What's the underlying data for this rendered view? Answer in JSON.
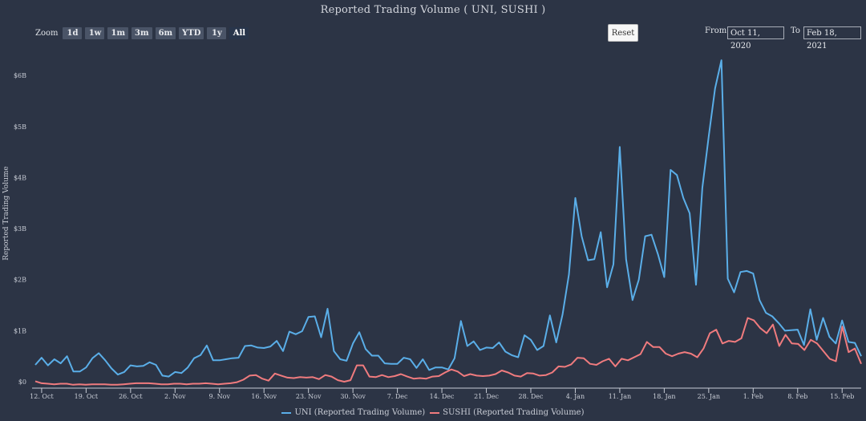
{
  "title": "Reported Trading Volume ( UNI, SUSHI )",
  "zoom": {
    "label": "Zoom",
    "buttons": [
      "1d",
      "1w",
      "1m",
      "3m",
      "6m",
      "YTD",
      "1y",
      "All"
    ],
    "active": "All"
  },
  "reset_label": "Reset",
  "range": {
    "from_label": "From",
    "from_value": "Oct 11, 2020",
    "to_label": "To",
    "to_value": "Feb 18, 2021"
  },
  "colors": {
    "uni": "#5aaee8",
    "sushi": "#f07b7e",
    "background": "#2c3445"
  },
  "chart_data": {
    "type": "line",
    "title": "Reported Trading Volume ( UNI, SUSHI )",
    "xlabel": "",
    "ylabel": "Reported Trading Volume",
    "x_start": "Oct 11, 2020",
    "x_end": "Feb 18, 2021",
    "x_unit": "days since Oct 11, 2020",
    "xlim": [
      0,
      130
    ],
    "ylim": [
      0,
      6.6
    ],
    "y_ticks": [
      {
        "value": 0,
        "label": "$0"
      },
      {
        "value": 1,
        "label": "$1B"
      },
      {
        "value": 2,
        "label": "$2B"
      },
      {
        "value": 3,
        "label": "$3B"
      },
      {
        "value": 4,
        "label": "$4B"
      },
      {
        "value": 5,
        "label": "$5B"
      },
      {
        "value": 6,
        "label": "$6B"
      }
    ],
    "x_ticks": [
      {
        "day": 1,
        "label": "12. Oct"
      },
      {
        "day": 8,
        "label": "19. Oct"
      },
      {
        "day": 15,
        "label": "26. Oct"
      },
      {
        "day": 22,
        "label": "2. Nov"
      },
      {
        "day": 29,
        "label": "9. Nov"
      },
      {
        "day": 36,
        "label": "16. Nov"
      },
      {
        "day": 43,
        "label": "23. Nov"
      },
      {
        "day": 50,
        "label": "30. Nov"
      },
      {
        "day": 57,
        "label": "7. Dec"
      },
      {
        "day": 64,
        "label": "14. Dec"
      },
      {
        "day": 71,
        "label": "21. Dec"
      },
      {
        "day": 78,
        "label": "28. Dec"
      },
      {
        "day": 85,
        "label": "4. Jan"
      },
      {
        "day": 92,
        "label": "11. Jan"
      },
      {
        "day": 99,
        "label": "18. Jan"
      },
      {
        "day": 106,
        "label": "25. Jan"
      },
      {
        "day": 113,
        "label": "1. Feb"
      },
      {
        "day": 120,
        "label": "8. Feb"
      },
      {
        "day": 127,
        "label": "15. Feb"
      }
    ],
    "grid": false,
    "legend": "bottom-center",
    "series": [
      {
        "name": "UNI (Reported Trading Volume)",
        "unit": "$B",
        "values": [
          0.33,
          0.47,
          0.32,
          0.44,
          0.36,
          0.5,
          0.2,
          0.2,
          0.28,
          0.46,
          0.56,
          0.42,
          0.26,
          0.14,
          0.19,
          0.32,
          0.3,
          0.31,
          0.38,
          0.33,
          0.12,
          0.1,
          0.19,
          0.17,
          0.28,
          0.46,
          0.52,
          0.71,
          0.42,
          0.42,
          0.44,
          0.46,
          0.47,
          0.7,
          0.71,
          0.67,
          0.66,
          0.69,
          0.8,
          0.6,
          0.98,
          0.93,
          0.99,
          1.27,
          1.28,
          0.87,
          1.43,
          0.6,
          0.44,
          0.41,
          0.75,
          0.97,
          0.64,
          0.51,
          0.51,
          0.36,
          0.35,
          0.35,
          0.47,
          0.44,
          0.27,
          0.44,
          0.23,
          0.28,
          0.28,
          0.24,
          0.46,
          1.19,
          0.7,
          0.79,
          0.62,
          0.67,
          0.66,
          0.77,
          0.59,
          0.52,
          0.48,
          0.91,
          0.82,
          0.62,
          0.7,
          1.3,
          0.77,
          1.32,
          2.1,
          3.6,
          2.85,
          2.38,
          2.4,
          2.93,
          1.85,
          2.3,
          4.6,
          2.4,
          1.6,
          2.0,
          2.85,
          2.88,
          2.5,
          2.05,
          4.15,
          4.05,
          3.6,
          3.3,
          1.9,
          3.8,
          4.8,
          5.75,
          6.3,
          2.02,
          1.75,
          2.15,
          2.17,
          2.12,
          1.6,
          1.35,
          1.28,
          1.15,
          1.0,
          1.01,
          1.02,
          0.72,
          1.42,
          0.82,
          1.25,
          0.88,
          0.75,
          1.2,
          0.78,
          0.76,
          0.5
        ]
      },
      {
        "name": "SUSHI (Reported Trading Volume)",
        "unit": "$B",
        "values": [
          0.01,
          -0.03,
          -0.04,
          -0.05,
          -0.04,
          -0.04,
          -0.06,
          -0.05,
          -0.06,
          -0.05,
          -0.05,
          -0.05,
          -0.06,
          -0.06,
          -0.05,
          -0.04,
          -0.03,
          -0.03,
          -0.03,
          -0.04,
          -0.05,
          -0.05,
          -0.04,
          -0.04,
          -0.05,
          -0.04,
          -0.04,
          -0.03,
          -0.04,
          -0.05,
          -0.04,
          -0.03,
          -0.01,
          0.04,
          0.12,
          0.13,
          0.06,
          0.02,
          0.16,
          0.12,
          0.08,
          0.07,
          0.09,
          0.08,
          0.09,
          0.05,
          0.13,
          0.1,
          0.03,
          0.0,
          0.03,
          0.32,
          0.32,
          0.1,
          0.09,
          0.13,
          0.09,
          0.11,
          0.15,
          0.1,
          0.06,
          0.07,
          0.06,
          0.1,
          0.11,
          0.18,
          0.24,
          0.2,
          0.11,
          0.15,
          0.12,
          0.11,
          0.12,
          0.15,
          0.22,
          0.18,
          0.12,
          0.1,
          0.17,
          0.16,
          0.12,
          0.13,
          0.18,
          0.3,
          0.29,
          0.34,
          0.47,
          0.46,
          0.35,
          0.33,
          0.4,
          0.45,
          0.3,
          0.45,
          0.42,
          0.48,
          0.54,
          0.78,
          0.68,
          0.68,
          0.55,
          0.5,
          0.55,
          0.58,
          0.55,
          0.48,
          0.65,
          0.95,
          1.02,
          0.75,
          0.8,
          0.78,
          0.85,
          1.25,
          1.2,
          1.05,
          0.95,
          1.12,
          0.7,
          0.92,
          0.75,
          0.74,
          0.62,
          0.82,
          0.75,
          0.6,
          0.45,
          0.4,
          1.08,
          0.58,
          0.65,
          0.35
        ]
      }
    ]
  }
}
